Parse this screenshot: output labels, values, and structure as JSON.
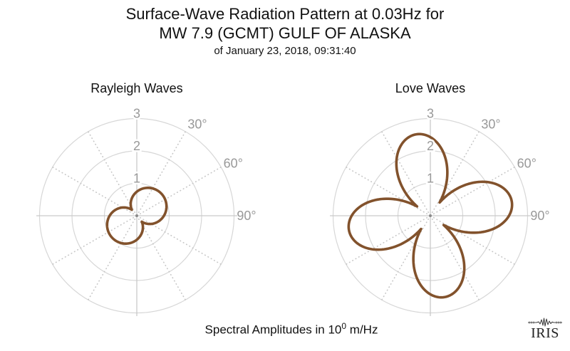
{
  "header": {
    "title_line1": "Surface-Wave Radiation Pattern at 0.03Hz for",
    "title_line2": "MW 7.9 (GCMT) GULF OF ALASKA",
    "subtitle": "of January 23, 2018, 09:31:40"
  },
  "caption": {
    "prefix": "Spectral Amplitudes in 10",
    "exponent": "0",
    "suffix": " m/Hz"
  },
  "logo": {
    "text": "IRIS",
    "icon": "seismogram-trace-icon"
  },
  "colors": {
    "pattern_line": "#82522c",
    "ring_grid": "#d7d7d7",
    "axis_line": "#c9c9c9",
    "dotted_radial": "#c6c6c6",
    "tick_label": "#999999",
    "center_dot": "#8a8a8a",
    "text": "#111111",
    "background": "#ffffff"
  },
  "chart_data": [
    {
      "type": "polar-line",
      "name": "rayleigh",
      "title": "Rayleigh Waves",
      "r_ticks": [
        1,
        2,
        3
      ],
      "r_max": 3,
      "r_units": "10^0 m/Hz",
      "grid": true,
      "angle_tick_degrees": [
        30,
        60,
        90
      ],
      "angle_tick_labels": [
        "30°",
        "60°",
        "90°"
      ],
      "line_color": "#82522c",
      "pattern": {
        "base": 0.24,
        "amplitude": 0.78,
        "harmonic": 1,
        "peak_azimuth_deg": 50
      },
      "azimuth_step_deg": 5,
      "amplitudes": [
        0.742,
        0.791,
        0.838,
        0.879,
        0.915,
        0.947,
        0.973,
        0.993,
        1.008,
        1.017,
        1.02,
        1.017,
        1.008,
        0.993,
        0.973,
        0.947,
        0.915,
        0.879,
        0.838,
        0.791,
        0.742,
        0.688,
        0.63,
        0.57,
        0.507,
        0.442,
        0.376,
        0.308,
        0.24,
        0.308,
        0.376,
        0.442,
        0.507,
        0.57,
        0.63,
        0.688,
        0.742,
        0.791,
        0.838,
        0.879,
        0.915,
        0.947,
        0.973,
        0.993,
        1.008,
        1.017,
        1.02,
        1.017,
        1.008,
        0.993,
        0.973,
        0.947,
        0.915,
        0.879,
        0.838,
        0.791,
        0.742,
        0.688,
        0.63,
        0.57,
        0.507,
        0.442,
        0.376,
        0.308,
        0.24,
        0.308,
        0.376,
        0.442,
        0.507,
        0.57,
        0.63,
        0.688
      ]
    },
    {
      "type": "polar-line",
      "name": "love",
      "title": "Love Waves",
      "r_ticks": [
        1,
        2,
        3
      ],
      "r_max": 3,
      "r_units": "10^0 m/Hz",
      "grid": true,
      "angle_tick_degrees": [
        30,
        60,
        90
      ],
      "angle_tick_labels": [
        "30°",
        "60°",
        "90°"
      ],
      "line_color": "#82522c",
      "pattern": {
        "base": 0.5,
        "amplitude": 2.05,
        "harmonic": 2,
        "peak_azimuth_deg": 80
      },
      "azimuth_step_deg": 5,
      "amplitudes": [
        2.427,
        2.275,
        2.07,
        1.818,
        1.525,
        1.201,
        0.857,
        0.5,
        0.857,
        1.201,
        1.525,
        1.818,
        2.07,
        2.275,
        2.427,
        2.519,
        2.55,
        2.519,
        2.427,
        2.275,
        2.07,
        1.818,
        1.525,
        1.201,
        0.857,
        0.5,
        0.857,
        1.201,
        1.525,
        1.818,
        2.07,
        2.275,
        2.427,
        2.519,
        2.55,
        2.519,
        2.427,
        2.275,
        2.07,
        1.818,
        1.525,
        1.201,
        0.857,
        0.5,
        0.857,
        1.201,
        1.525,
        1.818,
        2.07,
        2.275,
        2.427,
        2.519,
        2.55,
        2.519,
        2.427,
        2.275,
        2.07,
        1.818,
        1.525,
        1.201,
        0.857,
        0.5,
        0.857,
        1.201,
        1.525,
        1.818,
        2.07,
        2.275,
        2.427,
        2.519,
        2.55,
        2.519
      ]
    }
  ]
}
